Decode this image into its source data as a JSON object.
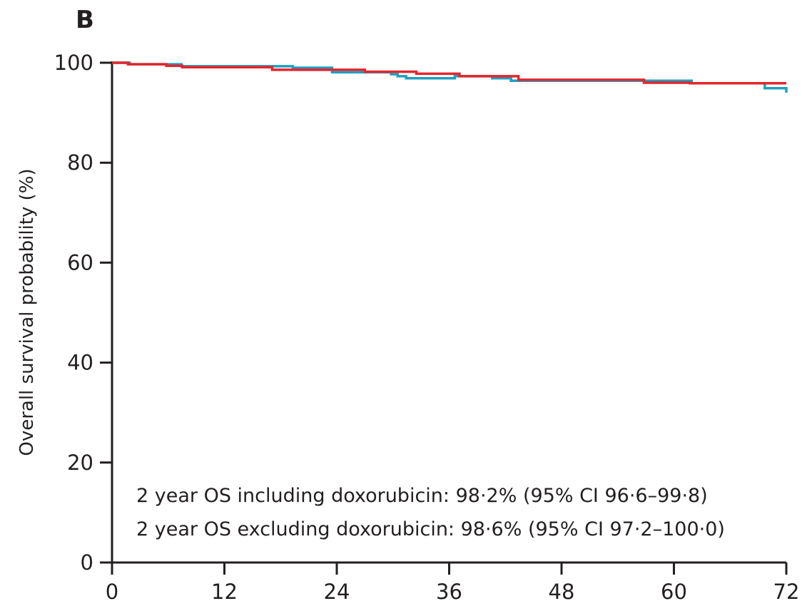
{
  "panel_label": "B",
  "chart_data": {
    "type": "line",
    "step": true,
    "title": "",
    "xlabel": "",
    "ylabel": "Overall survival probability (%)",
    "xlim": [
      0,
      72
    ],
    "ylim": [
      0,
      100
    ],
    "xticks": [
      "0",
      "12",
      "24",
      "36",
      "48",
      "60",
      "72"
    ],
    "yticks": [
      "0",
      "20",
      "40",
      "60",
      "80",
      "100"
    ],
    "grid": false,
    "legend": "none",
    "series": [
      {
        "color": "#1fa0c0",
        "x": [
          0,
          1.9,
          7.4,
          19.3,
          23.5,
          29.8,
          30.5,
          31.4,
          36.6,
          40.6,
          42.6,
          61.9,
          69.7,
          72
        ],
        "y": [
          100,
          99.7,
          99.3,
          99.0,
          98.1,
          97.7,
          97.3,
          96.9,
          97.3,
          96.9,
          96.4,
          95.9,
          94.9,
          94.0
        ]
      },
      {
        "color": "#e3262c",
        "x": [
          0,
          1.7,
          5.8,
          7.5,
          17.1,
          27.0,
          32.5,
          37.1,
          43.4,
          56.8,
          61.7,
          72
        ],
        "y": [
          100,
          99.7,
          99.4,
          99.1,
          98.6,
          98.2,
          97.8,
          97.3,
          96.6,
          96.0,
          95.9,
          95.9
        ]
      }
    ],
    "annotations": [
      "2 year OS including doxorubicin: 98·2% (95% CI 96·6–99·8)",
      "2 year OS excluding doxorubicin: 98·6% (95% CI 97·2–100·0)"
    ]
  }
}
